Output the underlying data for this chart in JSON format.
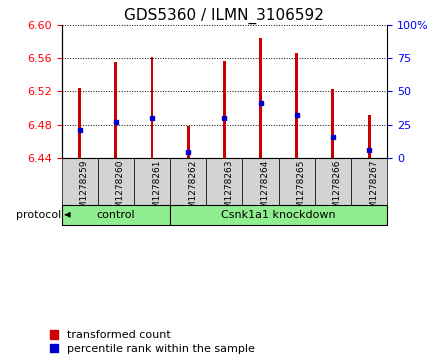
{
  "title": "GDS5360 / ILMN_3106592",
  "samples": [
    "GSM1278259",
    "GSM1278260",
    "GSM1278261",
    "GSM1278262",
    "GSM1278263",
    "GSM1278264",
    "GSM1278265",
    "GSM1278266",
    "GSM1278267"
  ],
  "bar_bottom": 6.44,
  "bar_tops": [
    6.524,
    6.556,
    6.562,
    6.478,
    6.557,
    6.585,
    6.567,
    6.523,
    6.492
  ],
  "blue_values": [
    6.473,
    6.483,
    6.488,
    6.447,
    6.488,
    6.506,
    6.492,
    6.465,
    6.449
  ],
  "ylim_left": [
    6.44,
    6.6
  ],
  "ylim_right": [
    0,
    100
  ],
  "yticks_left": [
    6.44,
    6.48,
    6.52,
    6.56,
    6.6
  ],
  "yticks_right": [
    0,
    25,
    50,
    75,
    100
  ],
  "yticklabels_right": [
    "0",
    "25",
    "50",
    "75",
    "100%"
  ],
  "bar_color": "#cc0000",
  "blue_color": "#0000cc",
  "protocol_groups": [
    {
      "label": "control",
      "start": 0,
      "end": 3
    },
    {
      "label": "Csnk1a1 knockdown",
      "start": 3,
      "end": 9
    }
  ],
  "protocol_label": "protocol",
  "legend_items": [
    {
      "label": "transformed count",
      "color": "#cc0000"
    },
    {
      "label": "percentile rank within the sample",
      "color": "#0000cc"
    }
  ],
  "bar_width": 0.08,
  "tick_label_bg": "#d3d3d3",
  "title_fontsize": 11,
  "tick_fontsize": 7,
  "legend_fontsize": 8
}
